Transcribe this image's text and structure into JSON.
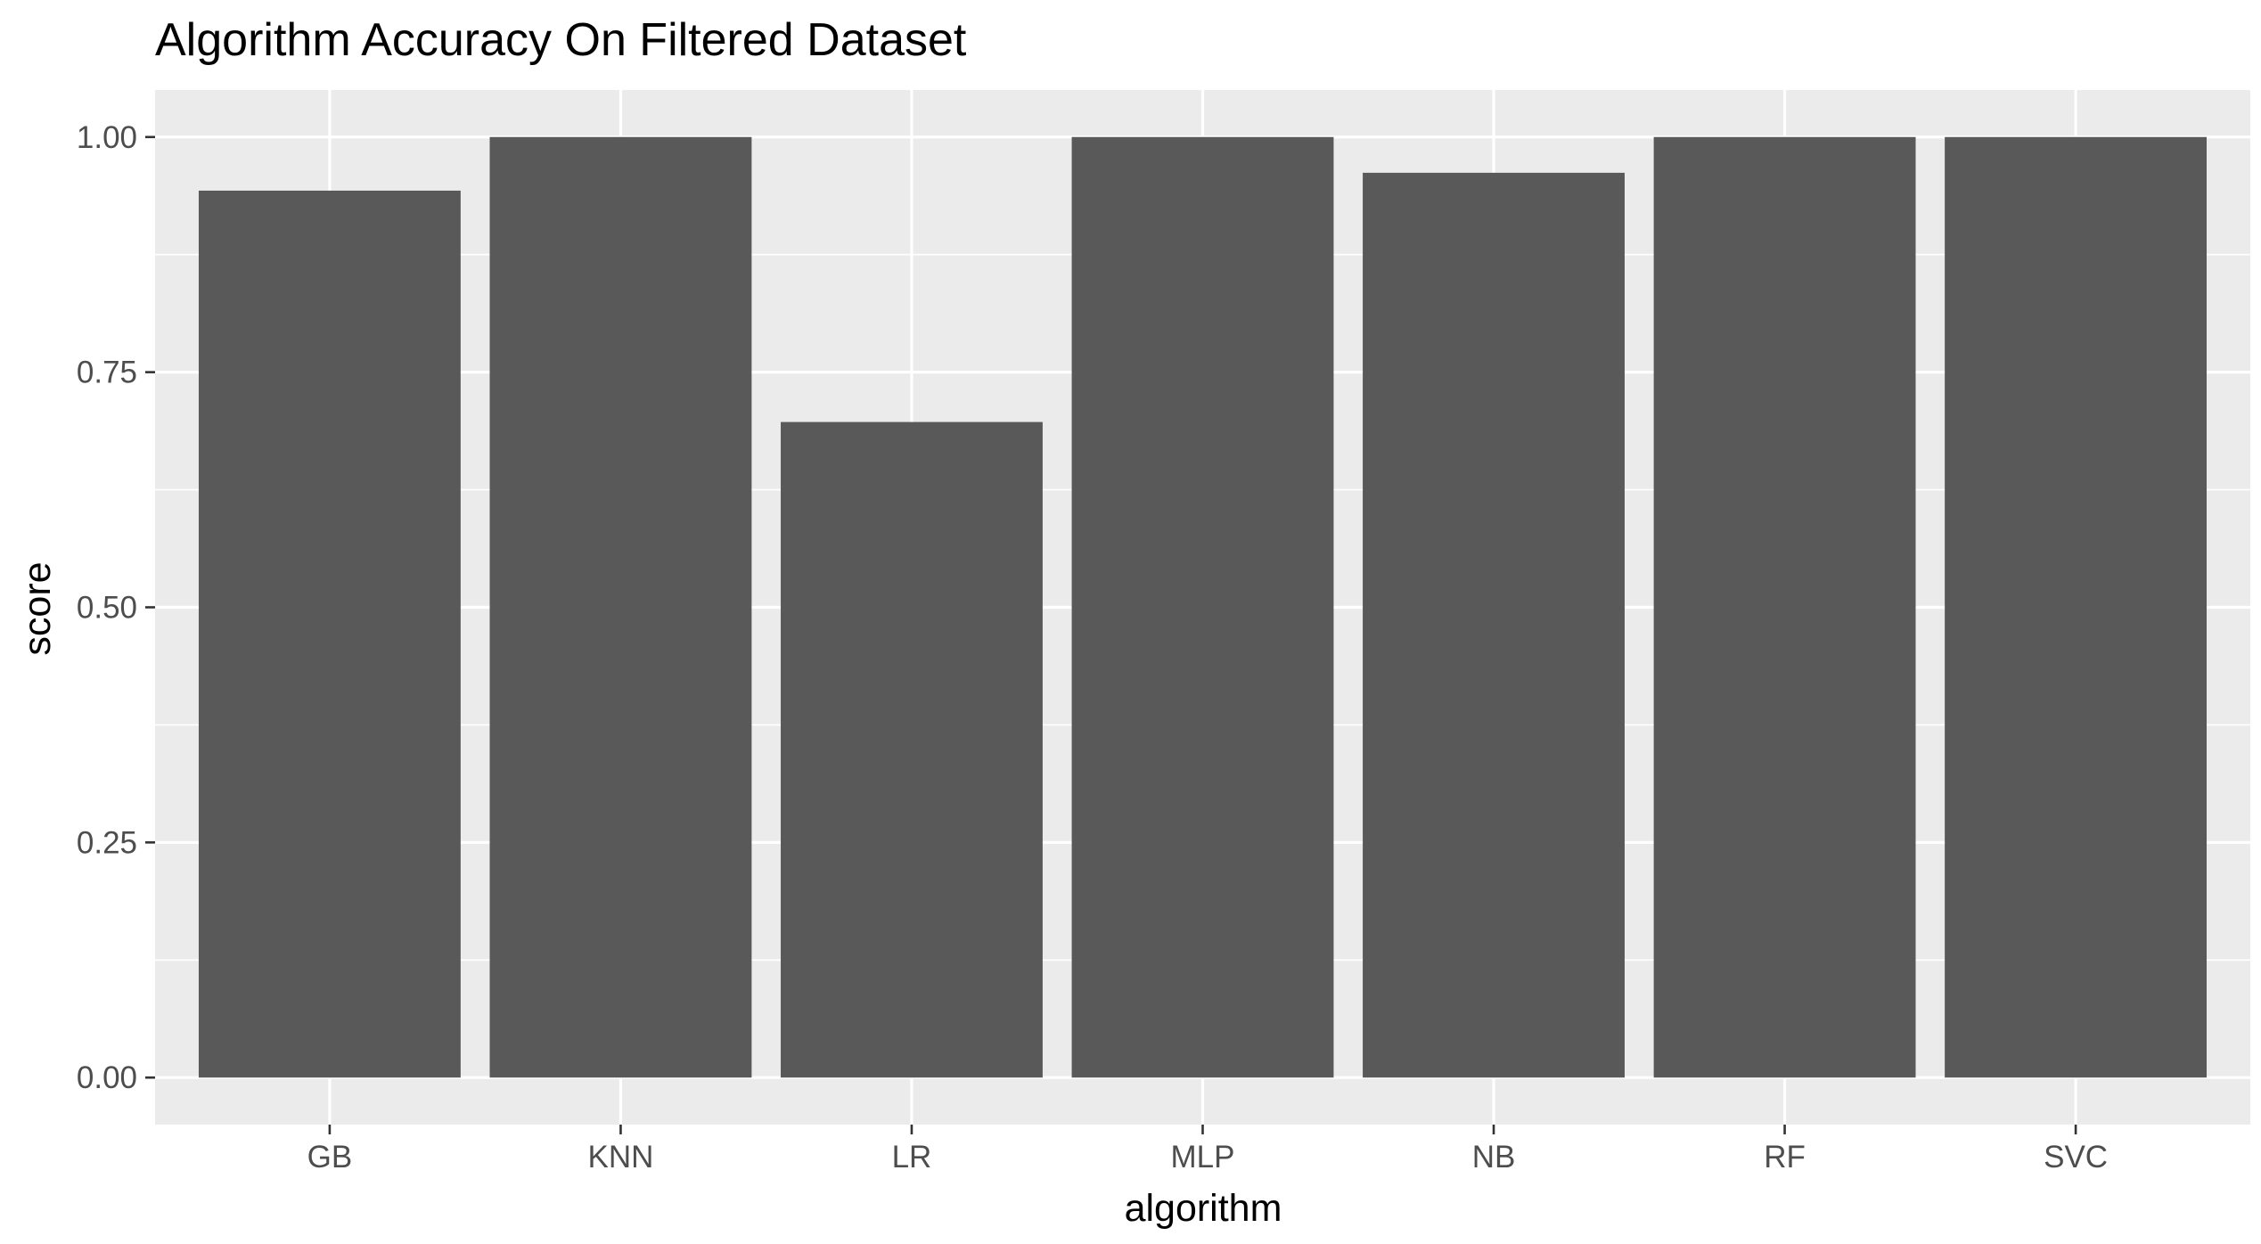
{
  "chart_data": {
    "type": "bar",
    "title": "Algorithm Accuracy On Filtered Dataset",
    "xlabel": "algorithm",
    "ylabel": "score",
    "categories": [
      "GB",
      "KNN",
      "LR",
      "MLP",
      "NB",
      "RF",
      "SVC"
    ],
    "values": [
      0.943,
      1.0,
      0.697,
      1.0,
      0.962,
      1.0,
      1.0
    ],
    "ylim": [
      0,
      1.05
    ],
    "yticks": [
      0.0,
      0.25,
      0.5,
      0.75,
      1.0
    ],
    "ytick_labels": [
      "0.00",
      "0.25",
      "0.50",
      "0.75",
      "1.00"
    ],
    "grid": true,
    "legend": "none",
    "colors": {
      "bar": "#595959",
      "panel": "#ebebeb",
      "grid": "#ffffff"
    }
  }
}
